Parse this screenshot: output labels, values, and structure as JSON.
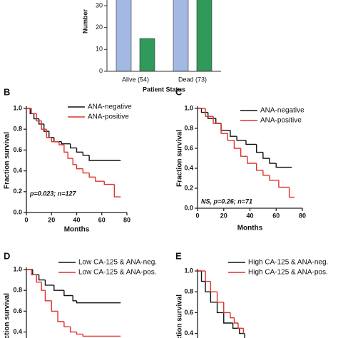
{
  "chart_data": [
    {
      "type": "bar",
      "ylabel": "Number",
      "xlabel": "Patient Status",
      "categories": [
        "Alive (54)",
        "Dead (73)"
      ],
      "series": [
        {
          "color": "#a3b9e3",
          "values": [
            39,
            40
          ]
        },
        {
          "color": "#2f9a5a",
          "values": [
            15,
            33
          ]
        }
      ],
      "ylim": [
        0,
        40
      ],
      "yticks": [
        0,
        10,
        20,
        30
      ]
    },
    {
      "type": "km",
      "label": "B",
      "xlabel": "Months",
      "ylabel": "Fraction survival",
      "annotation": "p=0.023; n=127",
      "xlim": [
        0,
        80
      ],
      "xticks": [
        0,
        20,
        40,
        60,
        80
      ],
      "ylim": [
        0,
        1
      ],
      "yticks": [
        {
          "value": 0,
          "label": "0.0"
        },
        0.2,
        0.4,
        0.6,
        0.8,
        {
          "value": 1,
          "label": "1.0"
        }
      ],
      "series": [
        {
          "name": "ANA-negative",
          "color": "#111111",
          "x": [
            0,
            3,
            6,
            10,
            14,
            18,
            22,
            28,
            35,
            40,
            45,
            50,
            75
          ],
          "values": [
            1,
            0.95,
            0.9,
            0.85,
            0.78,
            0.72,
            0.68,
            0.66,
            0.62,
            0.58,
            0.55,
            0.5,
            0.5
          ]
        },
        {
          "name": "ANA-positive",
          "color": "#e0302a",
          "x": [
            0,
            4,
            8,
            12,
            16,
            20,
            26,
            30,
            33,
            37,
            40,
            45,
            50,
            55,
            62,
            70,
            75
          ],
          "values": [
            1,
            0.95,
            0.88,
            0.8,
            0.72,
            0.68,
            0.65,
            0.58,
            0.52,
            0.46,
            0.42,
            0.38,
            0.34,
            0.3,
            0.27,
            0.15,
            0.15
          ]
        }
      ]
    },
    {
      "type": "km",
      "label": "C",
      "xlabel": "Months",
      "ylabel": "Fraction survival",
      "annotation": "NS, p=0.26; n=71",
      "xlim": [
        0,
        80
      ],
      "xticks": [
        0,
        20,
        40,
        60,
        80
      ],
      "ylim": [
        0,
        1
      ],
      "yticks": [
        {
          "value": 0,
          "label": "0.0"
        },
        0.2,
        0.4,
        0.6,
        0.8,
        {
          "value": 1,
          "label": "1.0"
        }
      ],
      "series": [
        {
          "name": "ANA-negative",
          "color": "#111111",
          "x": [
            0,
            3,
            8,
            14,
            18,
            25,
            30,
            37,
            45,
            50,
            55,
            60,
            72
          ],
          "values": [
            1,
            0.96,
            0.9,
            0.85,
            0.78,
            0.72,
            0.68,
            0.64,
            0.56,
            0.5,
            0.45,
            0.41,
            0.41
          ]
        },
        {
          "name": "ANA-positive",
          "color": "#e0302a",
          "x": [
            0,
            6,
            12,
            18,
            23,
            28,
            33,
            38,
            45,
            50,
            55,
            62,
            70,
            74
          ],
          "values": [
            1,
            0.92,
            0.85,
            0.75,
            0.68,
            0.6,
            0.52,
            0.45,
            0.38,
            0.33,
            0.28,
            0.21,
            0.11,
            0.11
          ]
        }
      ]
    },
    {
      "type": "km",
      "label": "D",
      "ylabel": "Fraction survival",
      "xlim": [
        0,
        80
      ],
      "ylim": [
        0,
        1
      ],
      "yticks": [
        0.4,
        0.6,
        0.8,
        {
          "value": 1,
          "label": "1.0"
        }
      ],
      "series": [
        {
          "name": "Low CA-125 & ANA-neg.",
          "color": "#111111",
          "x": [
            0,
            5,
            10,
            15,
            22,
            30,
            37,
            40,
            75
          ],
          "values": [
            1,
            0.95,
            0.9,
            0.85,
            0.8,
            0.75,
            0.7,
            0.68,
            0.68
          ]
        },
        {
          "name": "Low CA-125 & ANA-pos.",
          "color": "#e0302a",
          "x": [
            0,
            4,
            8,
            12,
            15,
            20,
            25,
            30,
            35,
            40,
            45,
            75
          ],
          "values": [
            1,
            0.95,
            0.88,
            0.8,
            0.7,
            0.6,
            0.5,
            0.45,
            0.4,
            0.38,
            0.36,
            0.36
          ]
        }
      ]
    },
    {
      "type": "km",
      "label": "E",
      "ylabel": "Fraction survival",
      "xlim": [
        0,
        80
      ],
      "ylim": [
        0,
        1
      ],
      "yticks": [
        0.4,
        0.6,
        0.8,
        {
          "value": 1,
          "label": "1.0"
        }
      ],
      "series": [
        {
          "name": "High CA-125 & ANA-neg.",
          "color": "#111111",
          "x": [
            0,
            3,
            6,
            10,
            15,
            20,
            27,
            32,
            36
          ],
          "values": [
            1,
            0.9,
            0.8,
            0.7,
            0.6,
            0.5,
            0.45,
            0.4,
            0.35
          ]
        },
        {
          "name": "High CA-125 & ANA-pos.",
          "color": "#e0302a",
          "x": [
            0,
            6,
            10,
            15,
            20,
            25,
            28,
            31,
            35
          ],
          "values": [
            1,
            0.9,
            0.8,
            0.7,
            0.6,
            0.55,
            0.5,
            0.45,
            0.4
          ]
        }
      ]
    }
  ]
}
